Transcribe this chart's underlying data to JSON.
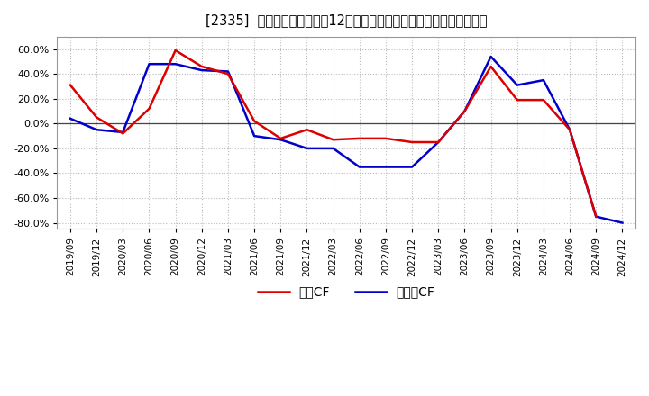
{
  "title": "[2335]  キャッシュフローの12か月移動合計の対前年同期増減率の推移",
  "background_color": "#ffffff",
  "plot_bg_color": "#ffffff",
  "grid_color": "#bbbbbb",
  "legend_labels": [
    "営業CF",
    "フリーCF"
  ],
  "line_colors": [
    "#dd0000",
    "#0000cc"
  ],
  "line_width": 1.8,
  "ylim": [
    -0.85,
    0.7
  ],
  "yticks": [
    -0.8,
    -0.6,
    -0.4,
    -0.2,
    0.0,
    0.2,
    0.4,
    0.6
  ],
  "dates": [
    "2019/09",
    "2019/12",
    "2020/03",
    "2020/06",
    "2020/09",
    "2020/12",
    "2021/03",
    "2021/06",
    "2021/09",
    "2021/12",
    "2022/03",
    "2022/06",
    "2022/09",
    "2022/12",
    "2023/03",
    "2023/06",
    "2023/09",
    "2023/12",
    "2024/03",
    "2024/06",
    "2024/09",
    "2024/12"
  ],
  "operating_cf": [
    0.31,
    0.05,
    -0.08,
    0.12,
    0.59,
    0.46,
    0.4,
    0.02,
    -0.12,
    -0.05,
    -0.13,
    -0.12,
    -0.12,
    -0.15,
    -0.15,
    0.1,
    0.46,
    0.19,
    0.19,
    -0.05,
    -0.75,
    null
  ],
  "free_cf": [
    0.04,
    -0.05,
    -0.07,
    0.48,
    0.48,
    0.43,
    0.42,
    -0.1,
    -0.13,
    -0.2,
    -0.2,
    -0.35,
    -0.35,
    -0.35,
    -0.15,
    0.1,
    0.54,
    0.31,
    0.35,
    -0.05,
    -0.75,
    -0.8
  ]
}
